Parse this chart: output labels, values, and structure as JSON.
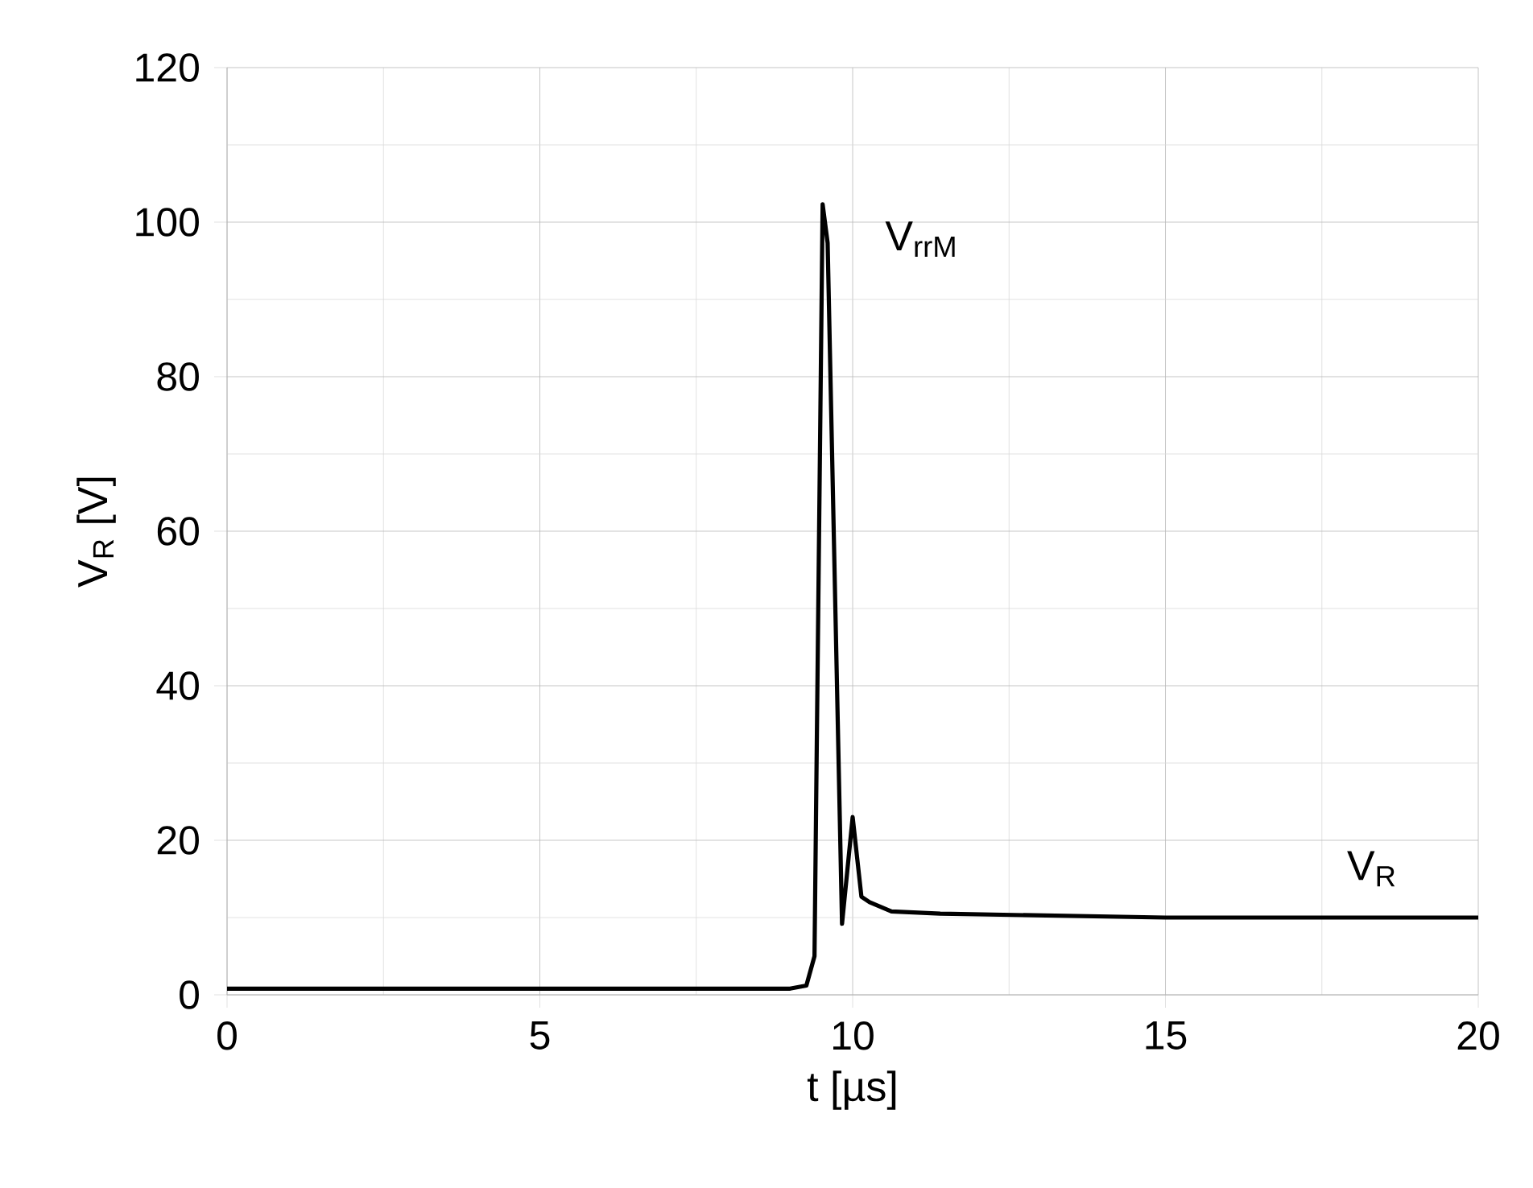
{
  "chart_data": {
    "type": "line",
    "xlabel": "t [µs]",
    "ylabel": "V$_{R}$ [V]",
    "x": [
      0,
      9.0,
      9.26,
      9.39,
      9.52,
      9.6,
      9.83,
      10.0,
      10.14,
      10.27,
      10.62,
      11.4,
      15,
      20
    ],
    "series": [
      {
        "color": "#000000",
        "values": [
          0.8,
          0.8,
          1.2,
          5,
          102.3,
          97.3,
          9.2,
          23,
          12.7,
          12,
          10.8,
          10.5,
          10,
          10
        ]
      }
    ],
    "xlim": [
      0,
      20
    ],
    "ylim": [
      0,
      120
    ],
    "xticks": [
      0,
      5,
      10,
      15,
      20
    ],
    "yticks": [
      0,
      20,
      40,
      60,
      80,
      100,
      120
    ],
    "grid": true,
    "marker": "none",
    "line_style": "solid",
    "annotations": [
      "V$_{rrM}$",
      "V$_{R}$"
    ]
  }
}
